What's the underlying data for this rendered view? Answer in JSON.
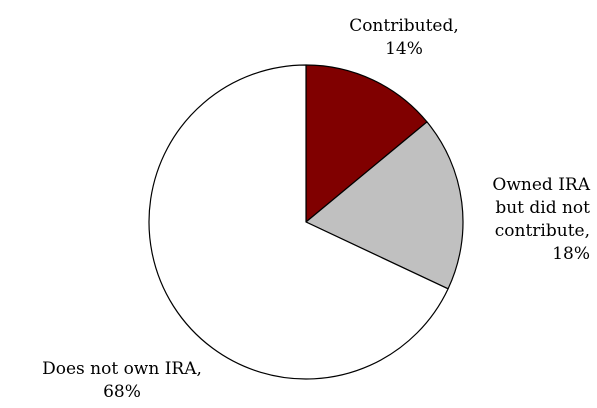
{
  "chart_data": {
    "type": "pie",
    "title": "",
    "start_angle_deg": 90,
    "direction": "clockwise",
    "slices": [
      {
        "label": "Contributed",
        "value": 14,
        "value_label": "14%",
        "color": "#800000"
      },
      {
        "label": "Owned IRA but did not contribute",
        "value": 18,
        "value_label": "18%",
        "color": "#c0c0c0"
      },
      {
        "label": "Does not own IRA",
        "value": 68,
        "value_label": "68%",
        "color": "#ffffff"
      }
    ],
    "labels": {
      "contributed": [
        "Contributed,",
        "14%"
      ],
      "owned": [
        "Owned IRA",
        "but did not",
        "contribute,",
        "18%"
      ],
      "doesnot": [
        "Does not own IRA,",
        "68%"
      ]
    },
    "stroke_color": "#000000",
    "legend": "none"
  }
}
